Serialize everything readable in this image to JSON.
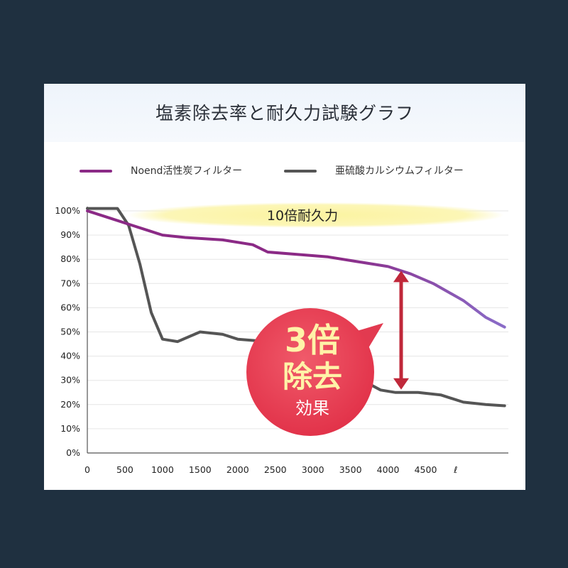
{
  "title": "塩素除去率と耐久力試験グラフ",
  "colors": {
    "background": "#1f3040",
    "series1": "#8b2a86",
    "series1_tail": "#8a6cc8",
    "series2": "#555555",
    "banner": "#fbf5a0",
    "badge": "#e8384f",
    "arrow": "#c0283a"
  },
  "annotations": {
    "durability": "10倍耐久力",
    "badge_line1": "3倍",
    "badge_line2": "除去",
    "badge_line3": "効果"
  },
  "chart_data": {
    "type": "line",
    "title": "塩素除去率と耐久力試験グラフ",
    "xlabel": "ℓ",
    "ylabel": "",
    "xlim": [
      0,
      5600
    ],
    "ylim": [
      0,
      100
    ],
    "x_ticks": [
      "0",
      "500",
      "1000",
      "1500",
      "2000",
      "2500",
      "3000",
      "3500",
      "4000",
      "4500",
      "ℓ"
    ],
    "y_ticks": [
      "0%",
      "10%",
      "20%",
      "30%",
      "40%",
      "50%",
      "60%",
      "70%",
      "80%",
      "90%",
      "100%"
    ],
    "grid": true,
    "legend": "top",
    "series": [
      {
        "name": "Noend活性炭フィルター",
        "x": [
          0,
          300,
          600,
          800,
          1000,
          1300,
          1800,
          2200,
          2400,
          2800,
          3200,
          3600,
          4000,
          4300,
          4600,
          5000,
          5300,
          5550
        ],
        "values": [
          100,
          97,
          94,
          92,
          90,
          89,
          88,
          86,
          83,
          82,
          81,
          79,
          77,
          74,
          70,
          63,
          56,
          52
        ]
      },
      {
        "name": "亜硫酸カルシウムフィルター",
        "x": [
          0,
          200,
          400,
          550,
          700,
          850,
          1000,
          1200,
          1500,
          1800,
          2000,
          2400,
          3000,
          3600,
          3900,
          4100,
          4400,
          4700,
          5000,
          5300,
          5550
        ],
        "values": [
          101,
          101,
          101,
          94,
          78,
          58,
          47,
          46,
          50,
          49,
          47,
          46,
          45,
          31,
          26,
          25,
          25,
          24,
          21,
          20,
          19.5
        ]
      }
    ]
  },
  "legend": {
    "s1_label": "Noend活性炭フィルター",
    "s2_label": "亜硫酸カルシウムフィルター"
  }
}
